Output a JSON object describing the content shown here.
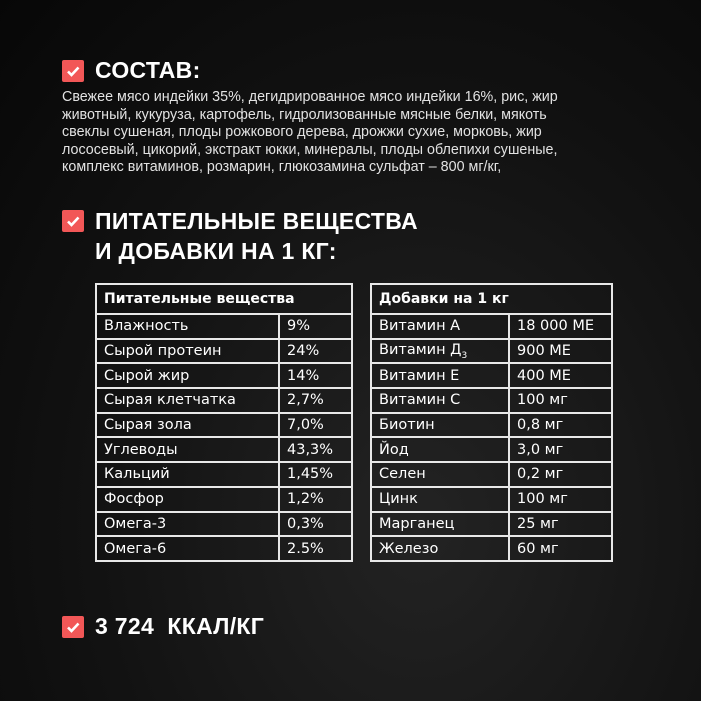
{
  "colors": {
    "accent": "#f25757",
    "background": "#111111"
  },
  "composition": {
    "icon": "check-icon",
    "title": "СОСТАВ:",
    "lines": [
      "Свежее мясо индейки 35%, дегидрированное мясо индейки 16%, рис, жир",
      "животный, кукуруза, картофель, гидролизованные мясные белки, мякоть",
      "свеклы сушеная, плоды рожкового дерева, дрожжи сухие, морковь, жир",
      "лососевый, цикорий, экстракт юкки, минералы, плоды облепихи сушеные,",
      "комплекс витаминов, розмарин, глюкозамина сульфат – 800 мг/кг,"
    ]
  },
  "nutrients_heading": {
    "icon": "check-icon",
    "line1": "ПИТАТЕЛЬНЫЕ ВЕЩЕСТВА",
    "line2": "И ДОБАВКИ НА 1 КГ:"
  },
  "nutrients_table": {
    "header": "Питательные вещества",
    "rows": [
      {
        "name": "Влажность",
        "value": "9%"
      },
      {
        "name": "Сырой протеин",
        "value": "24%"
      },
      {
        "name": "Сырой жир",
        "value": "14%"
      },
      {
        "name": "Сырая клетчатка",
        "value": "2,7%"
      },
      {
        "name": "Сырая зола",
        "value": "7,0%"
      },
      {
        "name": "Углеводы",
        "value": "43,3%"
      },
      {
        "name": "Кальций",
        "value": "1,45%"
      },
      {
        "name": "Фосфор",
        "value": "1,2%"
      },
      {
        "name": "Омега-3",
        "value": "0,3%"
      },
      {
        "name": "Омега-6",
        "value": "2.5%"
      }
    ]
  },
  "additives_table": {
    "header": "Добавки на 1 кг",
    "rows": [
      {
        "name": "Витамин А",
        "value": "18 000 МЕ"
      },
      {
        "name": "Витамин Д",
        "sub": "3",
        "value": "900 МЕ"
      },
      {
        "name": "Витамин Е",
        "value": "400 МЕ"
      },
      {
        "name": "Витамин С",
        "value": "100 мг"
      },
      {
        "name": "Биотин",
        "value": "0,8 мг"
      },
      {
        "name": "Йод",
        "value": "3,0 мг"
      },
      {
        "name": "Селен",
        "value": "0,2 мг"
      },
      {
        "name": "Цинк",
        "value": "100 мг"
      },
      {
        "name": "Марганец",
        "value": "25 мг"
      },
      {
        "name": "Железо",
        "value": "60 мг"
      }
    ]
  },
  "energy": {
    "icon": "check-icon",
    "text": "3 724  ККАЛ/КГ"
  }
}
